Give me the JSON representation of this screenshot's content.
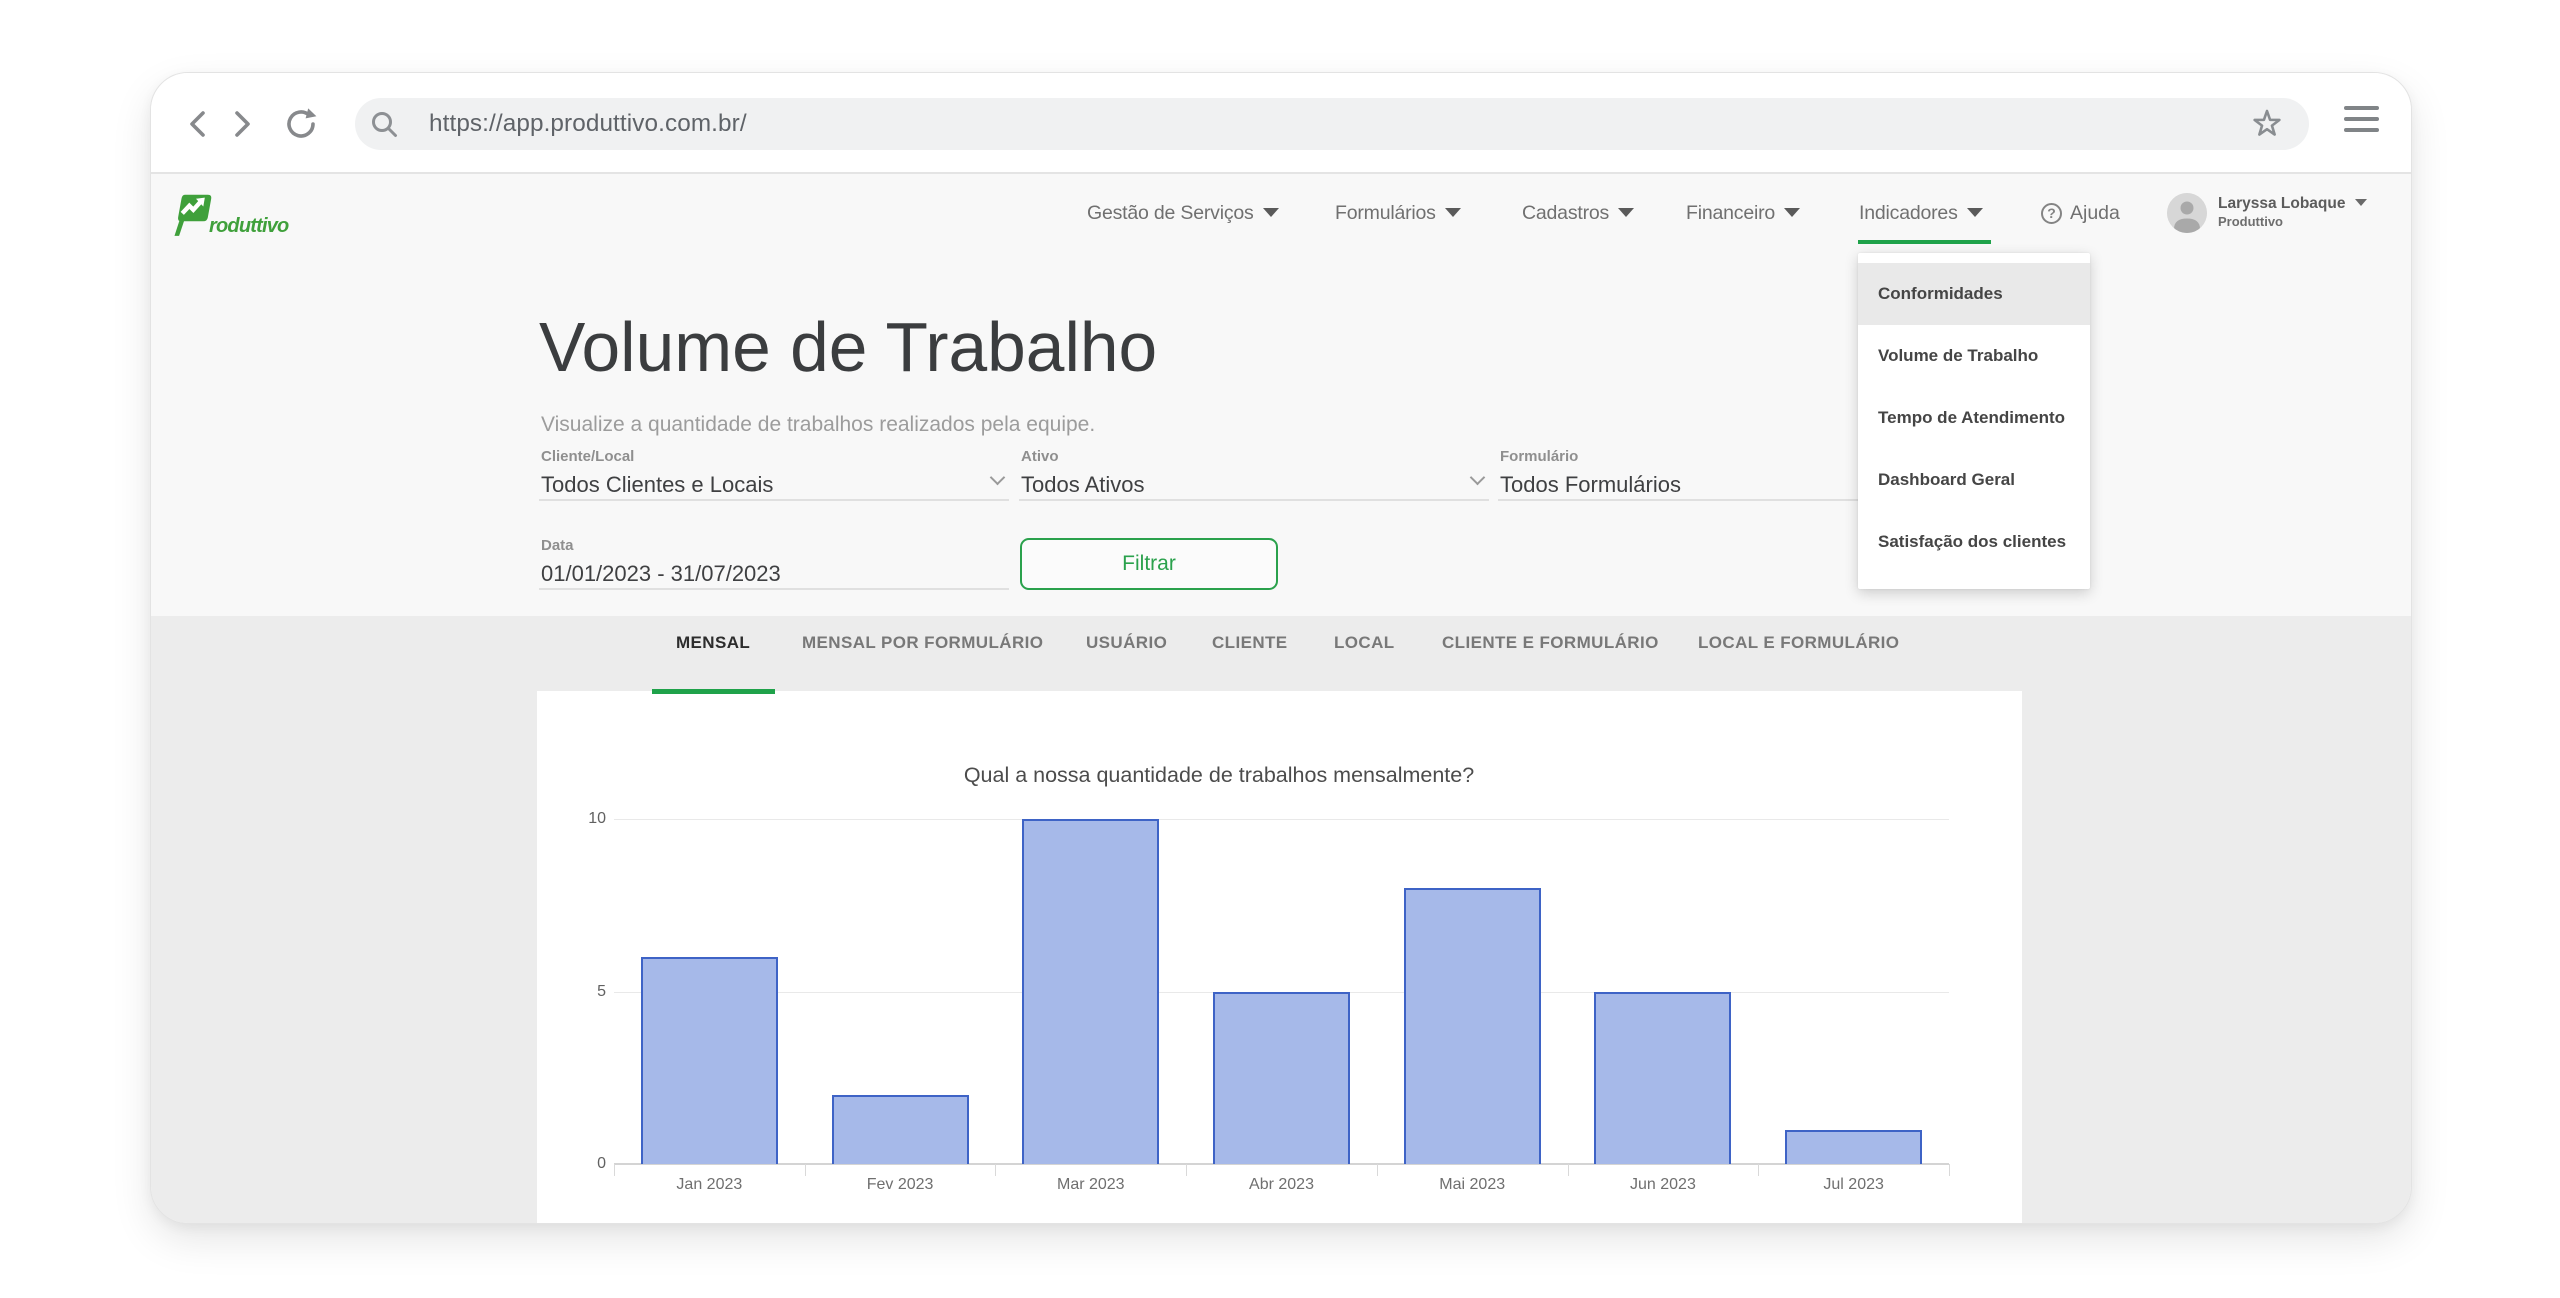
{
  "browser": {
    "url": "https://app.produttivo.com.br/"
  },
  "header": {
    "logo_text": "roduttivo",
    "nav": [
      {
        "label": "Gestão de Serviços",
        "active": false
      },
      {
        "label": "Formulários",
        "active": false
      },
      {
        "label": "Cadastros",
        "active": false
      },
      {
        "label": "Financeiro",
        "active": false
      },
      {
        "label": "Indicadores",
        "active": true
      }
    ],
    "help_label": "Ajuda",
    "user": {
      "name": "Laryssa Lobaque",
      "org": "Produttivo"
    }
  },
  "indicadores_menu": {
    "items": [
      {
        "label": "Conformidades",
        "highlighted": true
      },
      {
        "label": "Volume de Trabalho",
        "highlighted": false
      },
      {
        "label": "Tempo de Atendimento",
        "highlighted": false
      },
      {
        "label": "Dashboard Geral",
        "highlighted": false
      },
      {
        "label": "Satisfação dos clientes",
        "highlighted": false
      }
    ]
  },
  "page": {
    "title": "Volume de Trabalho",
    "subtitle": "Visualize a quantidade de trabalhos realizados pela equipe."
  },
  "filters": {
    "fields": [
      {
        "label": "Cliente/Local",
        "value": "Todos Clientes e Locais"
      },
      {
        "label": "Ativo",
        "value": "Todos Ativos"
      },
      {
        "label": "Formulário",
        "value": "Todos Formulários"
      }
    ],
    "date": {
      "label": "Data",
      "value": "01/01/2023 - 31/07/2023"
    },
    "submit_label": "Filtrar"
  },
  "tabs": {
    "items": [
      {
        "label": "MENSAL",
        "active": true
      },
      {
        "label": "MENSAL POR FORMULÁRIO",
        "active": false
      },
      {
        "label": "USUÁRIO",
        "active": false
      },
      {
        "label": "CLIENTE",
        "active": false
      },
      {
        "label": "LOCAL",
        "active": false
      },
      {
        "label": "CLIENTE E FORMULÁRIO",
        "active": false
      },
      {
        "label": "LOCAL E FORMULÁRIO",
        "active": false
      }
    ]
  },
  "chart_data": {
    "type": "bar",
    "title": "Qual a nossa quantidade de trabalhos mensalmente?",
    "categories": [
      "Jan 2023",
      "Fev 2023",
      "Mar 2023",
      "Abr 2023",
      "Mai 2023",
      "Jun 2023",
      "Jul 2023"
    ],
    "values": [
      6,
      2,
      10,
      5,
      8,
      5,
      1
    ],
    "xlabel": "",
    "ylabel": "",
    "ylim": [
      0,
      10
    ],
    "yticks": [
      0,
      5,
      10
    ],
    "grid": true,
    "legend": "none",
    "bar_fill": "#a6b9e9",
    "bar_border": "#3e63c6"
  },
  "colors": {
    "accent_green": "#1fa24a",
    "brand_green": "#3fa03b",
    "button_green": "#2aa14c"
  }
}
